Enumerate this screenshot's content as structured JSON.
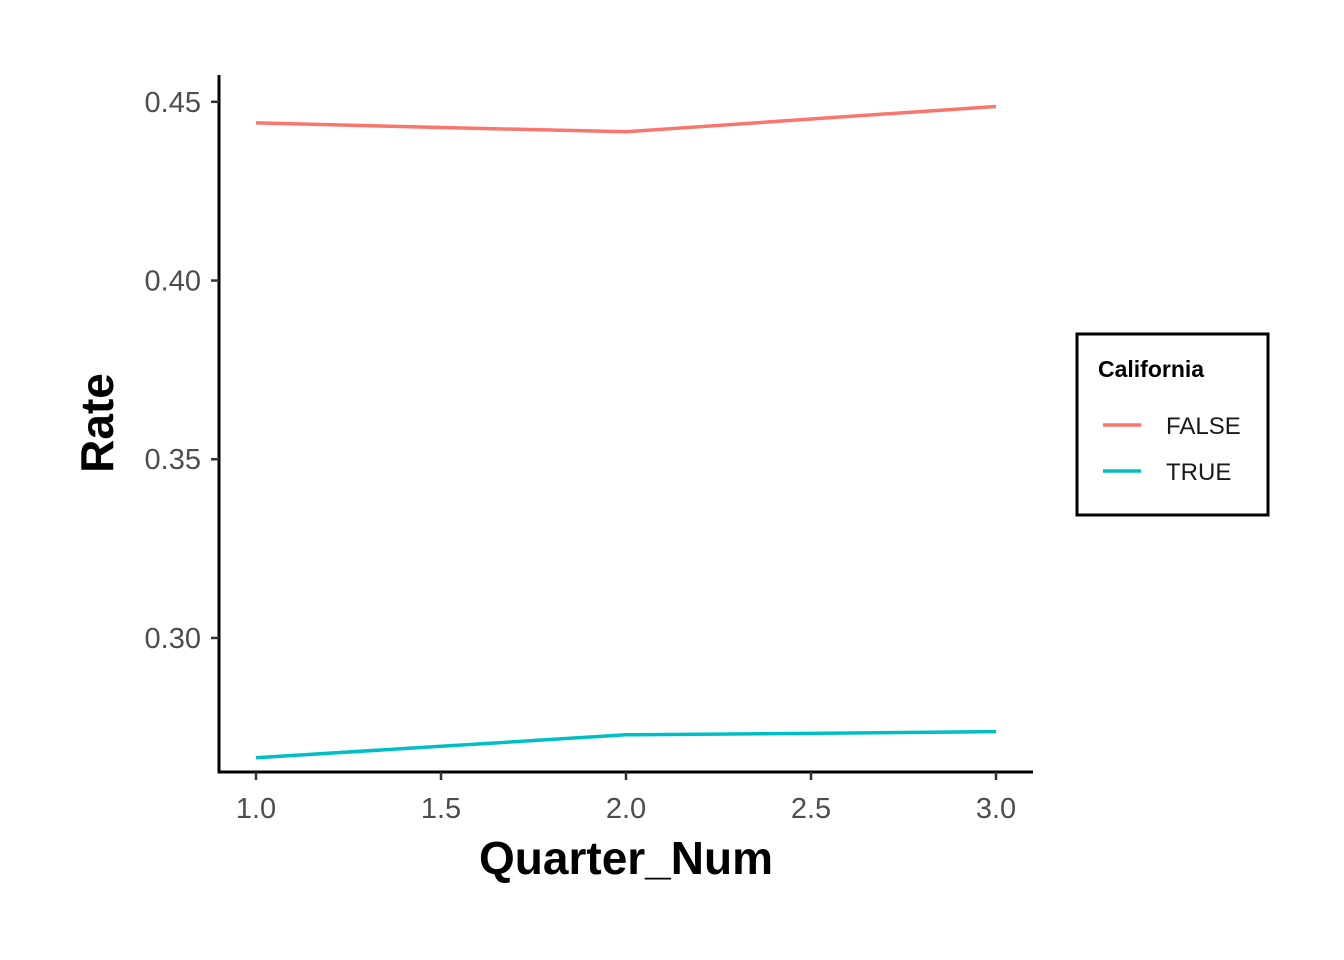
{
  "chart_data": {
    "type": "line",
    "title": "",
    "xlabel": "Quarter_Num",
    "ylabel": "Rate",
    "xlim": [
      0.9,
      3.1
    ],
    "ylim": [
      0.2625,
      0.4575
    ],
    "x_ticks": [
      1.0,
      1.5,
      2.0,
      2.5,
      3.0
    ],
    "x_tick_labels": [
      "1.0",
      "1.5",
      "2.0",
      "2.5",
      "3.0"
    ],
    "y_ticks": [
      0.3,
      0.35,
      0.4,
      0.45
    ],
    "y_tick_labels": [
      "0.30",
      "0.35",
      "0.40",
      "0.45"
    ],
    "grid": false,
    "legend": {
      "title": "California",
      "placement": "right"
    },
    "series": [
      {
        "name": "FALSE",
        "color": "#F8766D",
        "x": [
          1.0,
          1.5,
          2.0,
          2.5,
          3.0
        ],
        "y": [
          0.4441,
          0.4428,
          0.4416,
          0.4452,
          0.4487
        ]
      },
      {
        "name": "TRUE",
        "color": "#00BFC4",
        "x": [
          1.0,
          1.5,
          2.0,
          2.5,
          3.0
        ],
        "y": [
          0.2665,
          0.2697,
          0.2729,
          0.2733,
          0.2738
        ]
      }
    ]
  }
}
